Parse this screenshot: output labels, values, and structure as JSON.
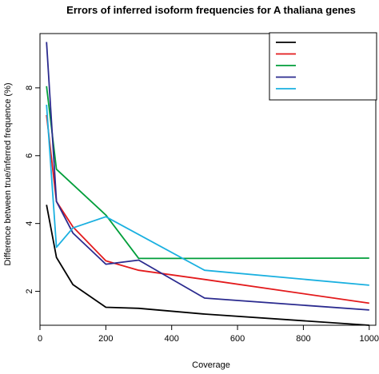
{
  "chart_data": {
    "type": "line",
    "title": "Errors of inferred isoform frequencies for A thaliana genes",
    "xlabel": "Coverage",
    "ylabel": "Difference between true/inferred frequence (%)",
    "xlim": [
      0,
      1020
    ],
    "ylim": [
      1.0,
      9.6
    ],
    "xticks": [
      0,
      200,
      400,
      600,
      800,
      1000
    ],
    "yticks": [
      2,
      4,
      6,
      8
    ],
    "grid": false,
    "legend": {
      "placement": "top-right",
      "entries_text_visible": false
    },
    "series": [
      {
        "color": "#000000",
        "x": [
          20,
          50,
          100,
          200,
          300,
          500,
          1000
        ],
        "y": [
          4.55,
          3.0,
          2.2,
          1.53,
          1.5,
          1.33,
          1.0
        ]
      },
      {
        "color": "#e31a1c",
        "x": [
          20,
          50,
          100,
          200,
          300,
          500,
          1000
        ],
        "y": [
          7.2,
          4.65,
          3.9,
          2.9,
          2.62,
          2.35,
          1.65
        ]
      },
      {
        "color": "#009e3a",
        "x": [
          20,
          50,
          200,
          300,
          500,
          1000
        ],
        "y": [
          8.05,
          5.6,
          4.25,
          2.97,
          2.97,
          2.98
        ]
      },
      {
        "color": "#2b2b8f",
        "x": [
          20,
          50,
          100,
          200,
          300,
          500,
          1000
        ],
        "y": [
          9.35,
          4.65,
          3.72,
          2.8,
          2.92,
          1.8,
          1.45
        ]
      },
      {
        "color": "#1ab0e0",
        "x": [
          20,
          50,
          100,
          200,
          500,
          1000
        ],
        "y": [
          7.5,
          3.3,
          3.87,
          4.2,
          2.62,
          2.18
        ]
      }
    ]
  }
}
